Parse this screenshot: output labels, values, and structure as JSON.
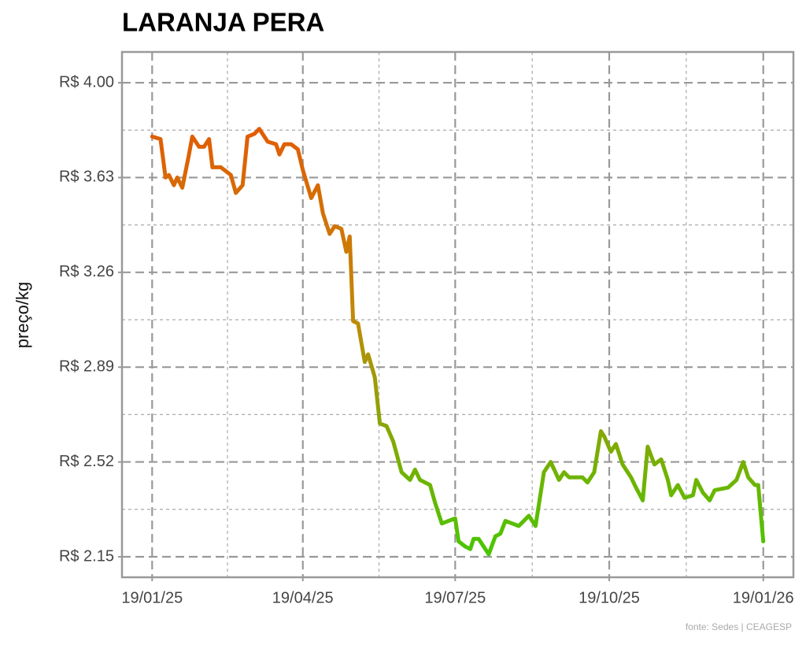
{
  "chart_data": {
    "type": "line",
    "title": "LARANJA PERA",
    "y_label": "preço/kg",
    "source": "fonte: Sedes | CEAGESP",
    "x": [
      "19/01/25",
      "24/01/25",
      "27/01/25",
      "29/01/25",
      "01/02/25",
      "03/02/25",
      "06/02/25",
      "10/02/25",
      "12/02/25",
      "16/02/25",
      "19/02/25",
      "22/02/25",
      "24/02/25",
      "01/03/25",
      "07/03/25",
      "10/03/25",
      "14/03/25",
      "17/03/25",
      "21/03/25",
      "24/03/25",
      "29/03/25",
      "03/04/25",
      "05/04/25",
      "08/04/25",
      "12/04/25",
      "16/04/25",
      "19/04/25",
      "24/04/25",
      "28/04/25",
      "01/05/25",
      "05/05/25",
      "08/05/25",
      "12/05/25",
      "15/05/25",
      "17/05/25",
      "19/05/25",
      "22/05/25",
      "26/05/25",
      "28/05/25",
      "01/06/25",
      "04/06/25",
      "08/06/25",
      "12/06/25",
      "17/06/25",
      "22/06/25",
      "25/06/25",
      "28/06/25",
      "04/07/25",
      "07/07/25",
      "11/07/25",
      "15/07/25",
      "19/07/25",
      "21/07/25",
      "25/07/25",
      "28/07/25",
      "30/07/25",
      "02/08/25",
      "05/08/25",
      "08/08/25",
      "12/08/25",
      "15/08/25",
      "18/08/25",
      "22/08/25",
      "26/08/25",
      "29/08/25",
      "01/09/25",
      "05/09/25",
      "10/09/25",
      "14/09/25",
      "19/09/25",
      "22/09/25",
      "25/09/25",
      "29/09/25",
      "03/10/25",
      "06/10/25",
      "10/10/25",
      "14/10/25",
      "16/10/25",
      "20/10/25",
      "23/10/25",
      "27/10/25",
      "01/11/25",
      "04/11/25",
      "08/11/25",
      "11/11/25",
      "15/11/25",
      "19/11/25",
      "23/11/25",
      "25/11/25",
      "29/11/25",
      "03/12/25",
      "08/12/25",
      "10/12/25",
      "14/12/25",
      "18/12/25",
      "21/12/25",
      "29/12/25",
      "03/01/26",
      "07/01/26",
      "10/01/26",
      "14/01/26",
      "16/01/26",
      "19/01/26"
    ],
    "values": [
      3.79,
      3.78,
      3.63,
      3.64,
      3.6,
      3.63,
      3.59,
      3.72,
      3.79,
      3.75,
      3.75,
      3.78,
      3.67,
      3.67,
      3.64,
      3.57,
      3.6,
      3.79,
      3.8,
      3.82,
      3.77,
      3.76,
      3.72,
      3.76,
      3.76,
      3.74,
      3.66,
      3.55,
      3.6,
      3.49,
      3.41,
      3.44,
      3.43,
      3.34,
      3.4,
      3.07,
      3.06,
      2.91,
      2.94,
      2.85,
      2.67,
      2.66,
      2.6,
      2.48,
      2.45,
      2.49,
      2.45,
      2.43,
      2.36,
      2.28,
      2.29,
      2.3,
      2.21,
      2.19,
      2.18,
      2.22,
      2.22,
      2.19,
      2.16,
      2.23,
      2.24,
      2.29,
      2.28,
      2.27,
      2.29,
      2.31,
      2.27,
      2.48,
      2.52,
      2.45,
      2.48,
      2.46,
      2.46,
      2.46,
      2.44,
      2.48,
      2.64,
      2.62,
      2.56,
      2.59,
      2.51,
      2.46,
      2.42,
      2.37,
      2.58,
      2.51,
      2.53,
      2.45,
      2.39,
      2.43,
      2.38,
      2.39,
      2.45,
      2.4,
      2.37,
      2.41,
      2.42,
      2.45,
      2.52,
      2.46,
      2.43,
      2.43,
      2.21
    ],
    "gradient": [
      "#f04800",
      "#c08a08",
      "#3ecc00"
    ],
    "xlim": [
      "01/01/25",
      "06/02/26"
    ],
    "xticks": [
      "19/01/25",
      "19/04/25",
      "19/07/25",
      "19/10/25",
      "19/01/26"
    ],
    "ylim": [
      2.07,
      4.12
    ],
    "yticks": [
      {
        "value": 2.15,
        "label": "R$ 2.15"
      },
      {
        "value": 2.52,
        "label": "R$ 2.52"
      },
      {
        "value": 2.89,
        "label": "R$ 2.89"
      },
      {
        "value": 3.26,
        "label": "R$ 3.26"
      },
      {
        "value": 3.63,
        "label": "R$ 3.63"
      },
      {
        "value": 4.0,
        "label": "R$ 4.00"
      }
    ],
    "grid": true
  }
}
